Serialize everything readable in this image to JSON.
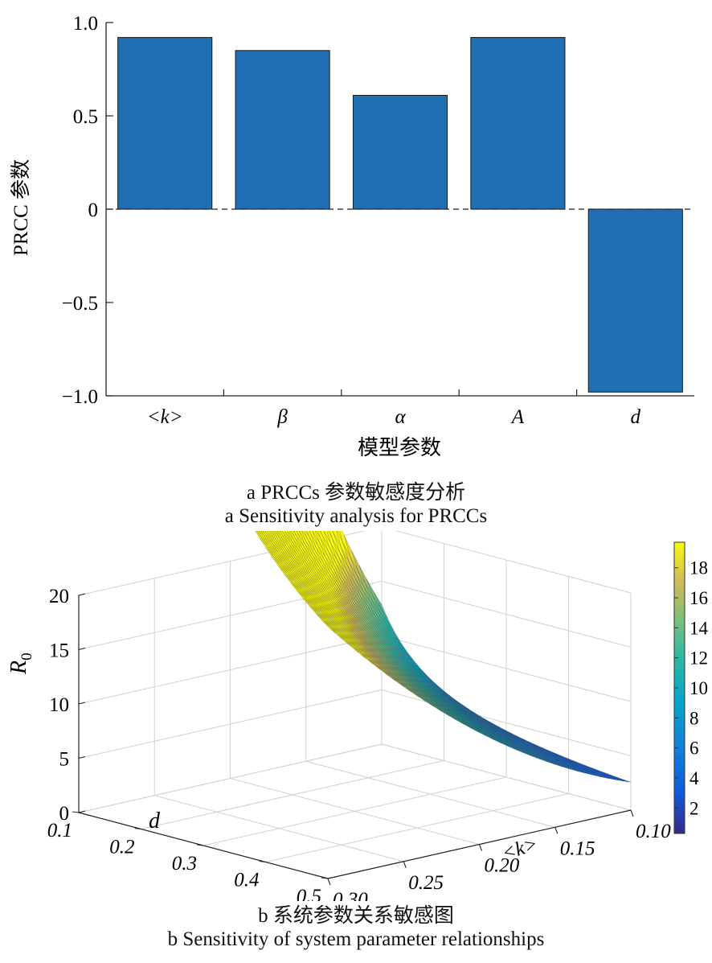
{
  "chart_data": [
    {
      "type": "bar",
      "categories": [
        "<k>",
        "β",
        "α",
        "A",
        "d"
      ],
      "values": [
        0.92,
        0.85,
        0.61,
        0.92,
        -0.98
      ],
      "xlabel": "模型参数",
      "ylabel": "PRCC 参数",
      "ylim": [
        -1.0,
        1.0
      ],
      "yticks": [
        "1.0",
        "0.5",
        "0",
        "−0.5",
        "−1.0"
      ],
      "ytick_values": [
        1.0,
        0.5,
        0,
        -0.5,
        -1.0
      ],
      "bar_color": "#1f6fb2",
      "zero_line": "dashed",
      "caption_cn": "a  PRCCs 参数敏感度分析",
      "caption_en": "a  Sensitivity analysis for PRCCs"
    },
    {
      "type": "surface",
      "xlabel": "<k>",
      "ylabel": "d",
      "zlabel": "R",
      "zlabel_sub": "0",
      "x_range": [
        0.1,
        0.3
      ],
      "y_range": [
        0.1,
        0.5
      ],
      "z_range": [
        0,
        20
      ],
      "xticks": [
        "0.10",
        "0.15",
        "0.20",
        "0.25",
        "0.30"
      ],
      "yticks": [
        "0.1",
        "0.2",
        "0.3",
        "0.4",
        "0.5"
      ],
      "zticks": [
        "0",
        "5",
        "10",
        "15",
        "20"
      ],
      "colorbar_ticks": [
        "2",
        "4",
        "6",
        "8",
        "10",
        "12",
        "14",
        "16",
        "18"
      ],
      "colormap": "parula",
      "caption_cn": "b  系统参数关系敏感图",
      "caption_en": "b  Sensitivity of system parameter relationships"
    }
  ]
}
